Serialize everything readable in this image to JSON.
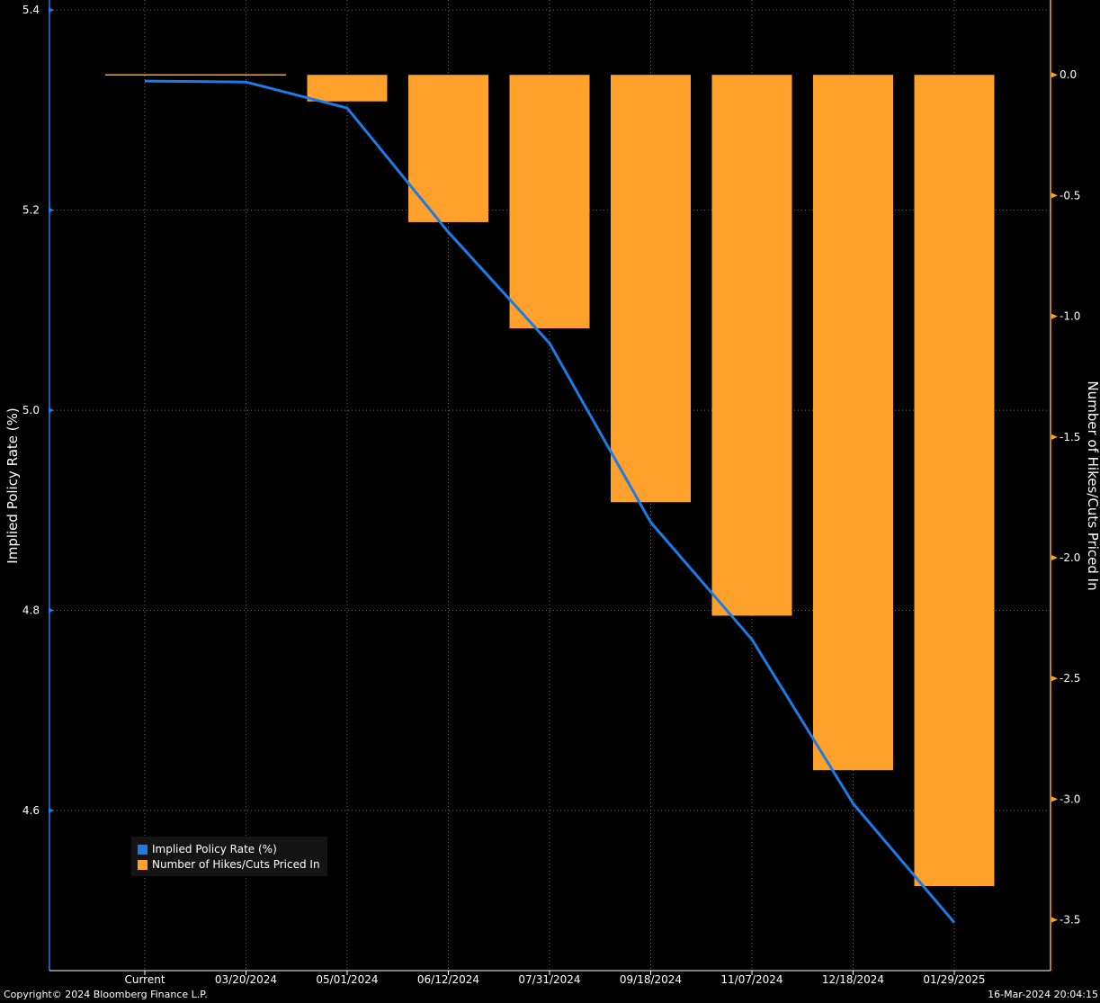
{
  "chart_data": {
    "type": "bar+line",
    "categories": [
      "Current",
      "03/20/2024",
      "05/01/2024",
      "06/12/2024",
      "07/31/2024",
      "09/18/2024",
      "11/07/2024",
      "12/18/2024",
      "01/29/2025"
    ],
    "series": [
      {
        "name": "Implied Policy Rate (%)",
        "type": "line",
        "axis": "left",
        "color": "#1e7be6",
        "values": [
          5.329,
          5.328,
          5.302,
          5.178,
          5.067,
          4.888,
          4.771,
          4.607,
          4.488
        ]
      },
      {
        "name": "Number of Hikes/Cuts Priced In",
        "type": "bar",
        "axis": "right",
        "color": "#ffa12b",
        "values": [
          0.0,
          -0.005,
          -0.11,
          -0.61,
          -1.05,
          -1.77,
          -2.24,
          -2.88,
          -3.36
        ]
      }
    ],
    "y_left": {
      "label": "Implied Policy Rate (%)",
      "ylim": [
        4.44,
        5.41
      ],
      "ticks": [
        "5.4",
        "5.2",
        "5.0",
        "4.8",
        "4.6"
      ],
      "tick_values": [
        5.4,
        5.2,
        5.0,
        4.8,
        4.6
      ],
      "color": "#1e7be6"
    },
    "y_right": {
      "label": "Number of Hikes/Cuts Priced In",
      "ylim": [
        -3.71,
        0.31
      ],
      "ticks": [
        "0.0",
        "-0.5",
        "-1.0",
        "-1.5",
        "-2.0",
        "-2.5",
        "-3.0",
        "-3.5"
      ],
      "tick_values": [
        0.0,
        -0.5,
        -1.0,
        -1.5,
        -2.0,
        -2.5,
        -3.0,
        -3.5
      ],
      "color": "#ffa12b"
    },
    "grid": true,
    "legend_position": "bottom-left"
  },
  "footer": {
    "copyright": "Copyright© 2024 Bloomberg Finance L.P.",
    "timestamp": "16-Mar-2024 20:04:15"
  }
}
